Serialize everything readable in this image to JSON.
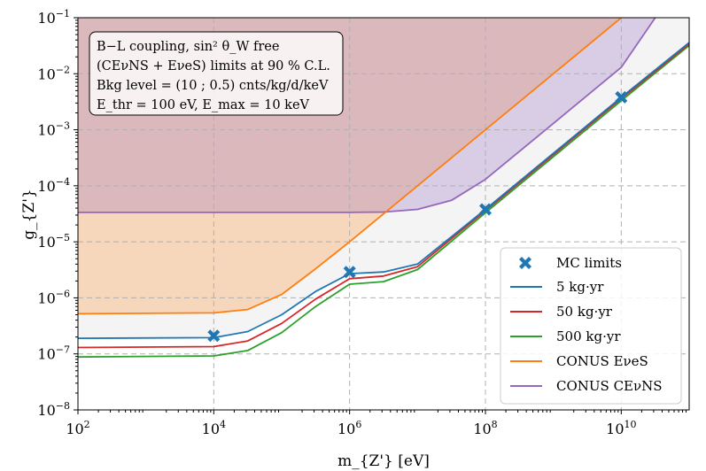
{
  "chart_data": {
    "type": "line",
    "xscale": "log",
    "yscale": "log",
    "xlim": [
      100,
      100000000000
    ],
    "ylim": [
      1e-08,
      0.1
    ],
    "xlabel": "m_{Z'} [eV]",
    "ylabel": "g_{Z'}",
    "x_ticks": [
      {
        "value": 100,
        "base": "10",
        "exp": "2"
      },
      {
        "value": 10000,
        "base": "10",
        "exp": "4"
      },
      {
        "value": 1000000,
        "base": "10",
        "exp": "6"
      },
      {
        "value": 100000000,
        "base": "10",
        "exp": "8"
      },
      {
        "value": 10000000000,
        "base": "10",
        "exp": "10"
      }
    ],
    "y_ticks": [
      {
        "value": 1e-08,
        "base": "10",
        "exp": "−8"
      },
      {
        "value": 1e-07,
        "base": "10",
        "exp": "−7"
      },
      {
        "value": 1e-06,
        "base": "10",
        "exp": "−6"
      },
      {
        "value": 1e-05,
        "base": "10",
        "exp": "−5"
      },
      {
        "value": 0.0001,
        "base": "10",
        "exp": "−4"
      },
      {
        "value": 0.001,
        "base": "10",
        "exp": "−3"
      },
      {
        "value": 0.01,
        "base": "10",
        "exp": "−2"
      },
      {
        "value": 0.1,
        "base": "10",
        "exp": "−1"
      }
    ],
    "grid": true,
    "annotation": [
      "B−L coupling,  sin² θ_W free",
      "(CEνNS + EνeS) limits at 90 % C.L.",
      "Bkg level = (10 ; 0.5) cnts/kg/d/keV",
      "E_thr = 100 eV, E_max = 10 keV"
    ],
    "legend_position": "lower right",
    "series": [
      {
        "name": "5 kg·yr",
        "color": "#1f77b4",
        "kind": "line",
        "points": [
          [
            100,
            1.9e-07
          ],
          [
            10000,
            1.95e-07
          ],
          [
            31622,
            2.5e-07
          ],
          [
            100000,
            5e-07
          ],
          [
            316228,
            1.3e-06
          ],
          [
            1000000,
            2.7e-06
          ],
          [
            3162278,
            2.9e-06
          ],
          [
            10000000,
            4e-06
          ],
          [
            100000000,
            3.8e-05
          ],
          [
            10000000000,
            0.0038
          ],
          [
            100000000000,
            0.036
          ]
        ]
      },
      {
        "name": "50 kg·yr",
        "color": "#d62728",
        "kind": "line",
        "points": [
          [
            100,
            1.3e-07
          ],
          [
            10000,
            1.35e-07
          ],
          [
            31622,
            1.7e-07
          ],
          [
            100000,
            3.5e-07
          ],
          [
            316228,
            9.5e-07
          ],
          [
            1000000,
            2.2e-06
          ],
          [
            3162278,
            2.45e-06
          ],
          [
            10000000,
            3.6e-06
          ],
          [
            100000000,
            3.6e-05
          ],
          [
            10000000000,
            0.0036
          ],
          [
            100000000000,
            0.034
          ]
        ]
      },
      {
        "name": "500 kg·yr",
        "color": "#2ca02c",
        "kind": "line",
        "points": [
          [
            100,
            8.8e-08
          ],
          [
            10000,
            9.2e-08
          ],
          [
            31622,
            1.15e-07
          ],
          [
            100000,
            2.4e-07
          ],
          [
            316228,
            7e-07
          ],
          [
            1000000,
            1.75e-06
          ],
          [
            3162278,
            1.95e-06
          ],
          [
            10000000,
            3.2e-06
          ],
          [
            100000000,
            3.3e-05
          ],
          [
            10000000000,
            0.0033
          ],
          [
            100000000000,
            0.032
          ]
        ]
      },
      {
        "name": "CONUS EνeS",
        "color": "#ff7f0e",
        "kind": "line",
        "points": [
          [
            100,
            5.2e-07
          ],
          [
            10000,
            5.4e-07
          ],
          [
            31622,
            6.2e-07
          ],
          [
            100000,
            1.15e-06
          ],
          [
            316228,
            3.3e-06
          ],
          [
            1000000,
            1e-05
          ],
          [
            10000000,
            0.0001
          ],
          [
            100000000,
            0.001
          ],
          [
            1000000000,
            0.01
          ],
          [
            10000000000,
            0.1
          ]
        ]
      },
      {
        "name": "CONUS CEνNS",
        "color": "#9467bd",
        "kind": "line",
        "points": [
          [
            100,
            3.35e-05
          ],
          [
            1000000,
            3.35e-05
          ],
          [
            3162278,
            3.4e-05
          ],
          [
            10000000,
            3.8e-05
          ],
          [
            31622777,
            5.5e-05
          ],
          [
            100000000,
            0.00013
          ],
          [
            1000000000,
            0.0013
          ],
          [
            10000000000,
            0.013
          ],
          [
            31622777000,
            0.1
          ]
        ]
      },
      {
        "name": "MC limits",
        "color": "#1f77b4",
        "kind": "marker",
        "points": [
          [
            10000,
            2.1e-07
          ],
          [
            1000000,
            2.9e-06
          ],
          [
            100000000,
            3.8e-05
          ],
          [
            10000000000,
            0.0038
          ]
        ]
      }
    ]
  }
}
